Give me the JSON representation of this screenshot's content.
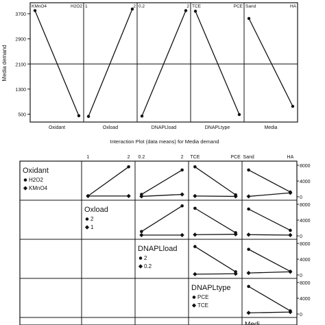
{
  "chart_data": [
    {
      "type": "line",
      "title": "",
      "ylabel": "Media demand",
      "yticks": [
        500,
        1300,
        2100,
        2900,
        3700
      ],
      "ylim": [
        250,
        4050
      ],
      "reference_line": 2100,
      "panels": [
        {
          "factor": "Oxidant",
          "levels": [
            "KMnO4",
            "H2O2"
          ],
          "means": [
            3800,
            450
          ]
        },
        {
          "factor": "Oxload",
          "levels": [
            "1",
            "2"
          ],
          "means": [
            430,
            3850
          ]
        },
        {
          "factor": "DNAPLload",
          "levels": [
            "0.2",
            "2"
          ],
          "means": [
            440,
            3800
          ]
        },
        {
          "factor": "DNAPLtype",
          "levels": [
            "TCE",
            "PCE"
          ],
          "means": [
            3780,
            490
          ]
        },
        {
          "factor": "Media",
          "levels": [
            "Sand",
            "HA"
          ],
          "means": [
            3550,
            750
          ]
        }
      ]
    },
    {
      "type": "line",
      "title": "Interaction Plot (data means) for Media demand",
      "factors": [
        {
          "name": "Oxidant",
          "levels": [
            "H2O2",
            "KMnO4"
          ],
          "tick_labels": [
            "",
            ""
          ]
        },
        {
          "name": "Oxload",
          "levels": [
            "2",
            "1"
          ],
          "tick_labels": [
            "1",
            "2"
          ]
        },
        {
          "name": "DNAPLload",
          "levels": [
            "2",
            "0.2"
          ],
          "tick_labels": [
            "0.2",
            "2"
          ]
        },
        {
          "name": "DNAPLtype",
          "levels": [
            "PCE",
            "TCE"
          ],
          "tick_labels": [
            "TCE",
            "PCE"
          ]
        },
        {
          "name": "Media",
          "levels": [
            "",
            ""
          ],
          "tick_labels": [
            "Sand",
            "HA"
          ]
        }
      ],
      "yticks": [
        "0",
        "4000",
        "8000"
      ],
      "ylim": [
        0,
        8000
      ],
      "cells": [
        {
          "row": 0,
          "col": 1,
          "series": [
            {
              "values": [
                200,
                7600
              ]
            },
            {
              "values": [
                200,
                200
              ]
            }
          ]
        },
        {
          "row": 0,
          "col": 2,
          "series": [
            {
              "values": [
                600,
                6800
              ]
            },
            {
              "values": [
                100,
                600
              ]
            }
          ]
        },
        {
          "row": 0,
          "col": 3,
          "series": [
            {
              "values": [
                7600,
                500
              ]
            },
            {
              "values": [
                200,
                100
              ]
            }
          ]
        },
        {
          "row": 0,
          "col": 4,
          "series": [
            {
              "values": [
                6800,
                1200
              ]
            },
            {
              "values": [
                100,
                1000
              ]
            }
          ]
        },
        {
          "row": 1,
          "col": 2,
          "series": [
            {
              "values": [
                1100,
                7600
              ]
            },
            {
              "values": [
                200,
                200
              ]
            }
          ]
        },
        {
          "row": 1,
          "col": 3,
          "series": [
            {
              "values": [
                7000,
                800
              ]
            },
            {
              "values": [
                300,
                400
              ]
            }
          ]
        },
        {
          "row": 1,
          "col": 4,
          "series": [
            {
              "values": [
                6800,
                1400
              ]
            },
            {
              "values": [
                300,
                200
              ]
            }
          ]
        },
        {
          "row": 2,
          "col": 3,
          "series": [
            {
              "values": [
                7200,
                800
              ]
            },
            {
              "values": [
                200,
                300
              ]
            }
          ]
        },
        {
          "row": 2,
          "col": 4,
          "series": [
            {
              "values": [
                6500,
                900
              ]
            },
            {
              "values": [
                500,
                800
              ]
            }
          ]
        },
        {
          "row": 3,
          "col": 4,
          "series": [
            {
              "values": [
                7000,
                800
              ]
            },
            {
              "values": [
                300,
                500
              ]
            }
          ]
        }
      ],
      "partial_row_label": "Medi"
    }
  ]
}
